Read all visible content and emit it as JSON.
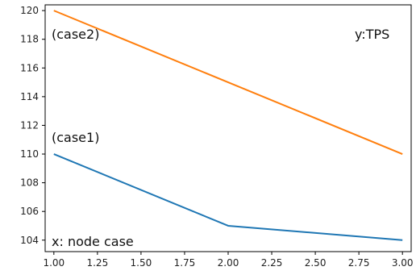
{
  "chart_data": {
    "type": "line",
    "x": [
      1,
      2,
      3
    ],
    "series": [
      {
        "values": [
          120,
          115,
          110
        ],
        "color": "#ff7f0e"
      },
      {
        "values": [
          110,
          105,
          104
        ],
        "color": "#1f77b4"
      }
    ],
    "xlim": [
      0.95,
      3.05
    ],
    "ylim": [
      103.2,
      120.4
    ],
    "xticks": [
      "1.00",
      "1.25",
      "1.50",
      "1.75",
      "2.00",
      "2.25",
      "2.50",
      "2.75",
      "3.00"
    ],
    "yticks": [
      "104",
      "106",
      "108",
      "110",
      "112",
      "114",
      "116",
      "118",
      "120"
    ],
    "grid": false,
    "annotations": {
      "case2": "(case2)",
      "case1": "(case1)",
      "ylabel": "y:TPS",
      "xlabel": "x: node case"
    }
  }
}
